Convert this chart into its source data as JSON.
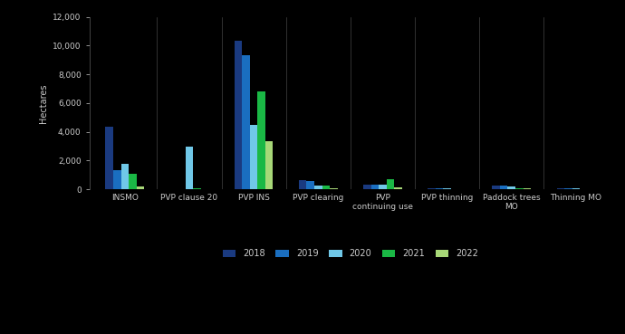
{
  "categories": [
    "INSMO",
    "PVP clause 20",
    "PVP INS",
    "PVP clearing",
    "PVP\ncontinuing use",
    "PVP thinning",
    "Paddock trees\nMO",
    "Thinning MO"
  ],
  "years": [
    "2018",
    "2019",
    "2020",
    "2021",
    "2022"
  ],
  "colors": [
    "#1a3a80",
    "#1a6ec0",
    "#70c8e8",
    "#1ab845",
    "#a8d878"
  ],
  "values": {
    "2018": [
      4350,
      0,
      10350,
      620,
      310,
      55,
      280,
      80
    ],
    "2019": [
      1350,
      0,
      9300,
      600,
      350,
      55,
      240,
      80
    ],
    "2020": [
      1800,
      3000,
      4450,
      240,
      350,
      55,
      220,
      50
    ],
    "2021": [
      1100,
      100,
      6800,
      240,
      700,
      0,
      75,
      30
    ],
    "2022": [
      200,
      0,
      3350,
      100,
      150,
      0,
      50,
      20
    ]
  },
  "ylabel": "Hectares",
  "ylim": [
    0,
    12000
  ],
  "yticks": [
    0,
    2000,
    4000,
    6000,
    8000,
    10000,
    12000
  ],
  "background_color": "#000000",
  "plot_bg_color": "#000000",
  "text_color": "#cccccc",
  "axis_color": "#444444",
  "tick_label_fontsize": 6.5,
  "ylabel_fontsize": 7,
  "legend_fontsize": 7
}
